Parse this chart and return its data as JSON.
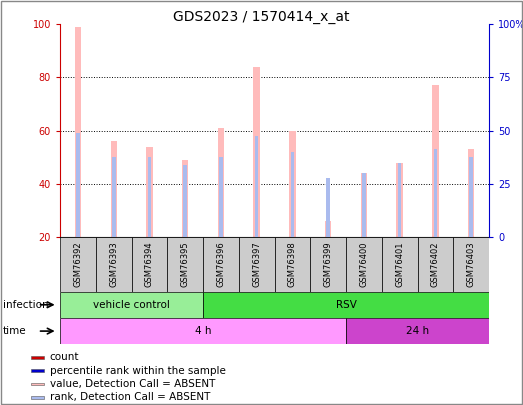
{
  "title": "GDS2023 / 1570414_x_at",
  "samples": [
    "GSM76392",
    "GSM76393",
    "GSM76394",
    "GSM76395",
    "GSM76396",
    "GSM76397",
    "GSM76398",
    "GSM76399",
    "GSM76400",
    "GSM76401",
    "GSM76402",
    "GSM76403"
  ],
  "value_absent": [
    99,
    56,
    54,
    49,
    61,
    84,
    60,
    26,
    44,
    48,
    77,
    53
  ],
  "rank_absent": [
    59,
    50,
    50,
    47,
    50,
    58,
    52,
    42,
    44,
    48,
    53,
    50
  ],
  "ylim": [
    20,
    100
  ],
  "y2lim": [
    0,
    100
  ],
  "yticks_left": [
    20,
    40,
    60,
    80,
    100
  ],
  "yticks_right": [
    0,
    25,
    50,
    75,
    100
  ],
  "ytick_labels_right": [
    "0",
    "25",
    "50",
    "75",
    "100%"
  ],
  "infection_groups": [
    {
      "label": "vehicle control",
      "start": 0,
      "end": 4,
      "color": "#98ee98"
    },
    {
      "label": "RSV",
      "start": 4,
      "end": 12,
      "color": "#44dd44"
    }
  ],
  "time_groups": [
    {
      "label": "4 h",
      "start": 0,
      "end": 8,
      "color": "#ff99ff"
    },
    {
      "label": "24 h",
      "start": 8,
      "end": 12,
      "color": "#cc44cc"
    }
  ],
  "absent_bar_color": "#ffbbbb",
  "rank_bar_color": "#aabbee",
  "count_color": "#cc0000",
  "rank_color": "#0000cc",
  "legend_items": [
    {
      "label": "count",
      "color": "#cc0000"
    },
    {
      "label": "percentile rank within the sample",
      "color": "#0000cc"
    },
    {
      "label": "value, Detection Call = ABSENT",
      "color": "#ffbbbb"
    },
    {
      "label": "rank, Detection Call = ABSENT",
      "color": "#aabbee"
    }
  ],
  "title_fontsize": 10,
  "tick_fontsize": 7,
  "label_fontsize": 8,
  "sample_label_bg": "#cccccc",
  "border_color": "#888888"
}
